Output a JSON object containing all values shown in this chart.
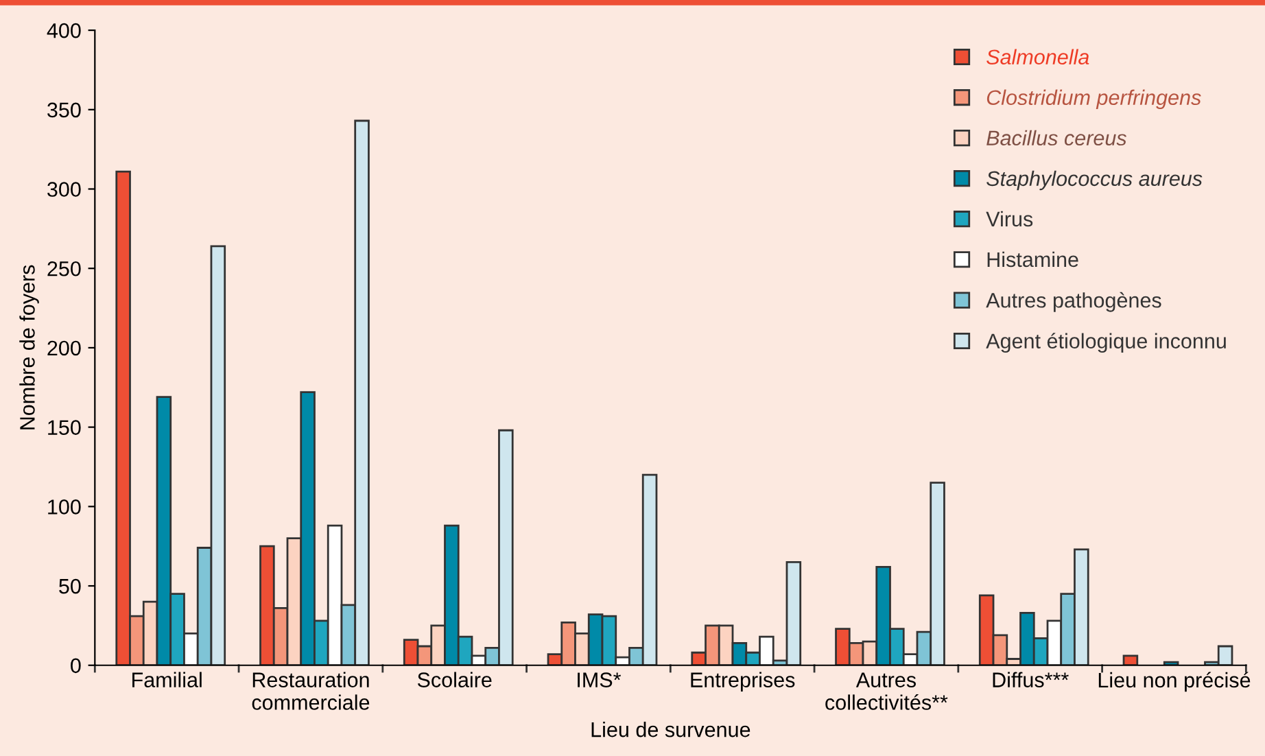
{
  "chart_data": {
    "type": "bar",
    "xlabel": "Lieu de survenue",
    "ylabel": "Nombre de foyers",
    "categories": [
      "Familial",
      "Restauration\ncommerciale",
      "Scolaire",
      "IMS*",
      "Entreprises",
      "Autres\ncollectivités**",
      "Diffus***",
      "Lieu non précisé"
    ],
    "series": [
      {
        "name": "Salmonella",
        "color": "#ee4f35",
        "values": [
          311,
          75,
          16,
          7,
          8,
          23,
          44,
          6
        ]
      },
      {
        "name": "Clostridium perfringens",
        "color": "#f4967a",
        "values": [
          31,
          36,
          12,
          27,
          25,
          14,
          19,
          null
        ]
      },
      {
        "name": "Bacillus cereus",
        "color": "#fcd3c1",
        "values": [
          40,
          80,
          25,
          20,
          25,
          15,
          4,
          null
        ]
      },
      {
        "name": "Staphylococcus aureus",
        "color": "#008aa8",
        "values": [
          169,
          172,
          88,
          32,
          14,
          62,
          33,
          2
        ]
      },
      {
        "name": "Virus",
        "color": "#1fa6bf",
        "values": [
          45,
          28,
          18,
          31,
          8,
          23,
          17,
          null
        ]
      },
      {
        "name": "Histamine",
        "color": "#ffffff",
        "values": [
          20,
          88,
          6,
          5,
          18,
          7,
          28,
          null
        ]
      },
      {
        "name": "Autres pathogènes",
        "color": "#7fc4d6",
        "values": [
          74,
          38,
          11,
          11,
          3,
          21,
          45,
          2
        ]
      },
      {
        "name": "Agent étiologique inconnu",
        "color": "#cfe6ee",
        "values": [
          264,
          343,
          148,
          120,
          65,
          115,
          73,
          12
        ]
      }
    ],
    "ylim": [
      0,
      400
    ],
    "yticks": [
      0,
      50,
      100,
      150,
      200,
      250,
      300,
      350,
      400
    ],
    "grid": false,
    "legend": "top right"
  }
}
